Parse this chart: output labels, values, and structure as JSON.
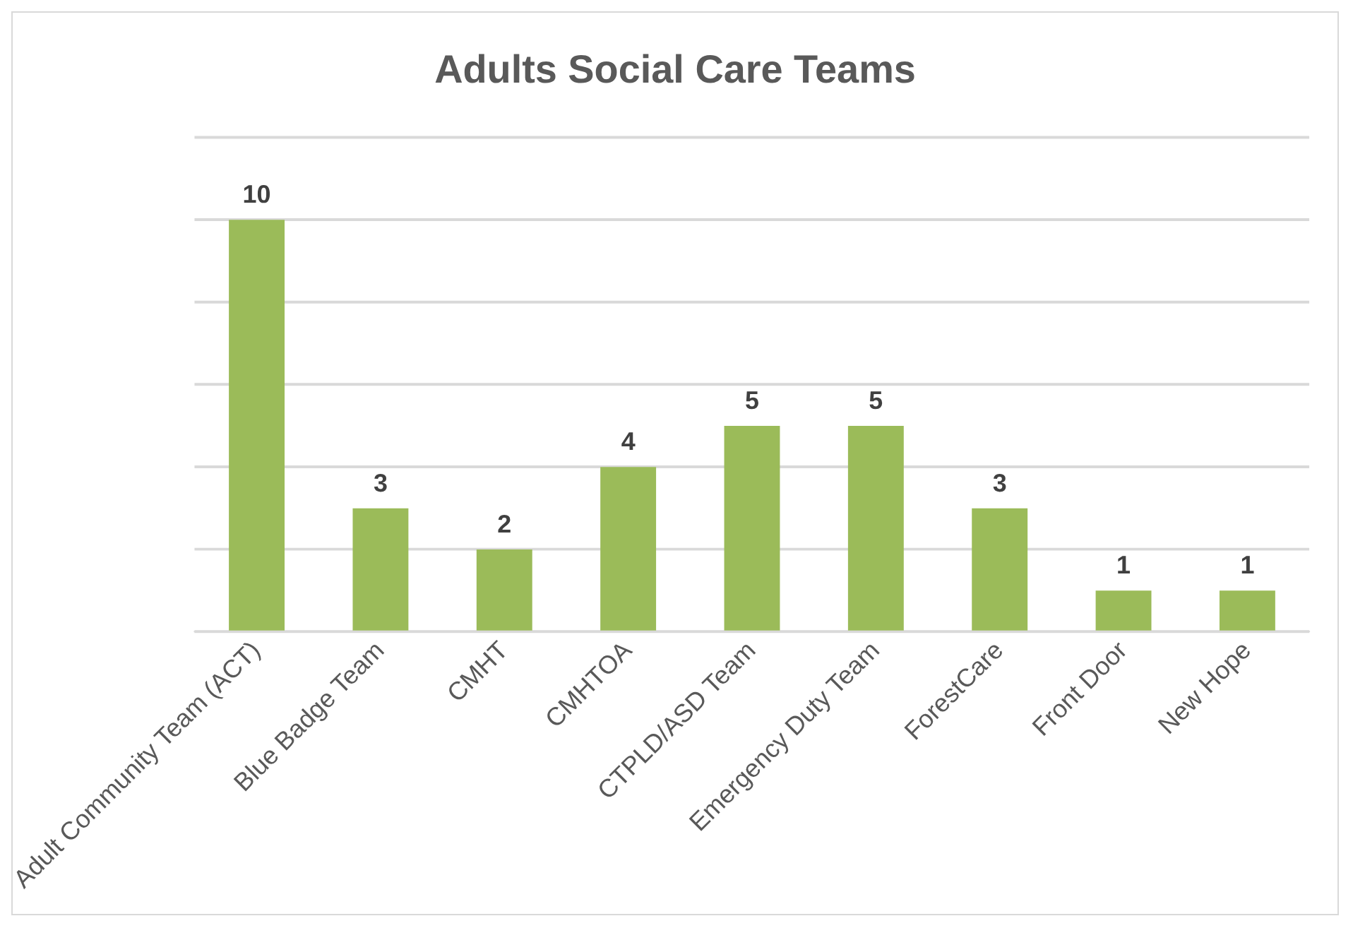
{
  "chart_data": {
    "type": "bar",
    "title": "Adults Social Care Teams",
    "categories": [
      "Adult Community Team (ACT)",
      "Blue Badge Team",
      "CMHT",
      "CMHTOA",
      "CTPLD/ASD Team",
      "Emergency Duty Team",
      "ForestCare",
      "Front Door",
      "New Hope"
    ],
    "values": [
      10,
      3,
      2,
      4,
      5,
      5,
      3,
      1,
      1
    ],
    "color": "#9bbb59",
    "ylim": [
      0,
      12
    ],
    "yticks": [
      {
        "value": 0,
        "label": null
      },
      {
        "value": 2,
        "label": null
      },
      {
        "value": 4,
        "label": null
      },
      {
        "value": 6,
        "label": null
      },
      {
        "value": 8,
        "label": null
      },
      {
        "value": 10,
        "label": null
      },
      {
        "value": 12,
        "label": null
      }
    ],
    "grid": "y",
    "tick_labels": "x",
    "data_labels": true,
    "legend": false
  }
}
